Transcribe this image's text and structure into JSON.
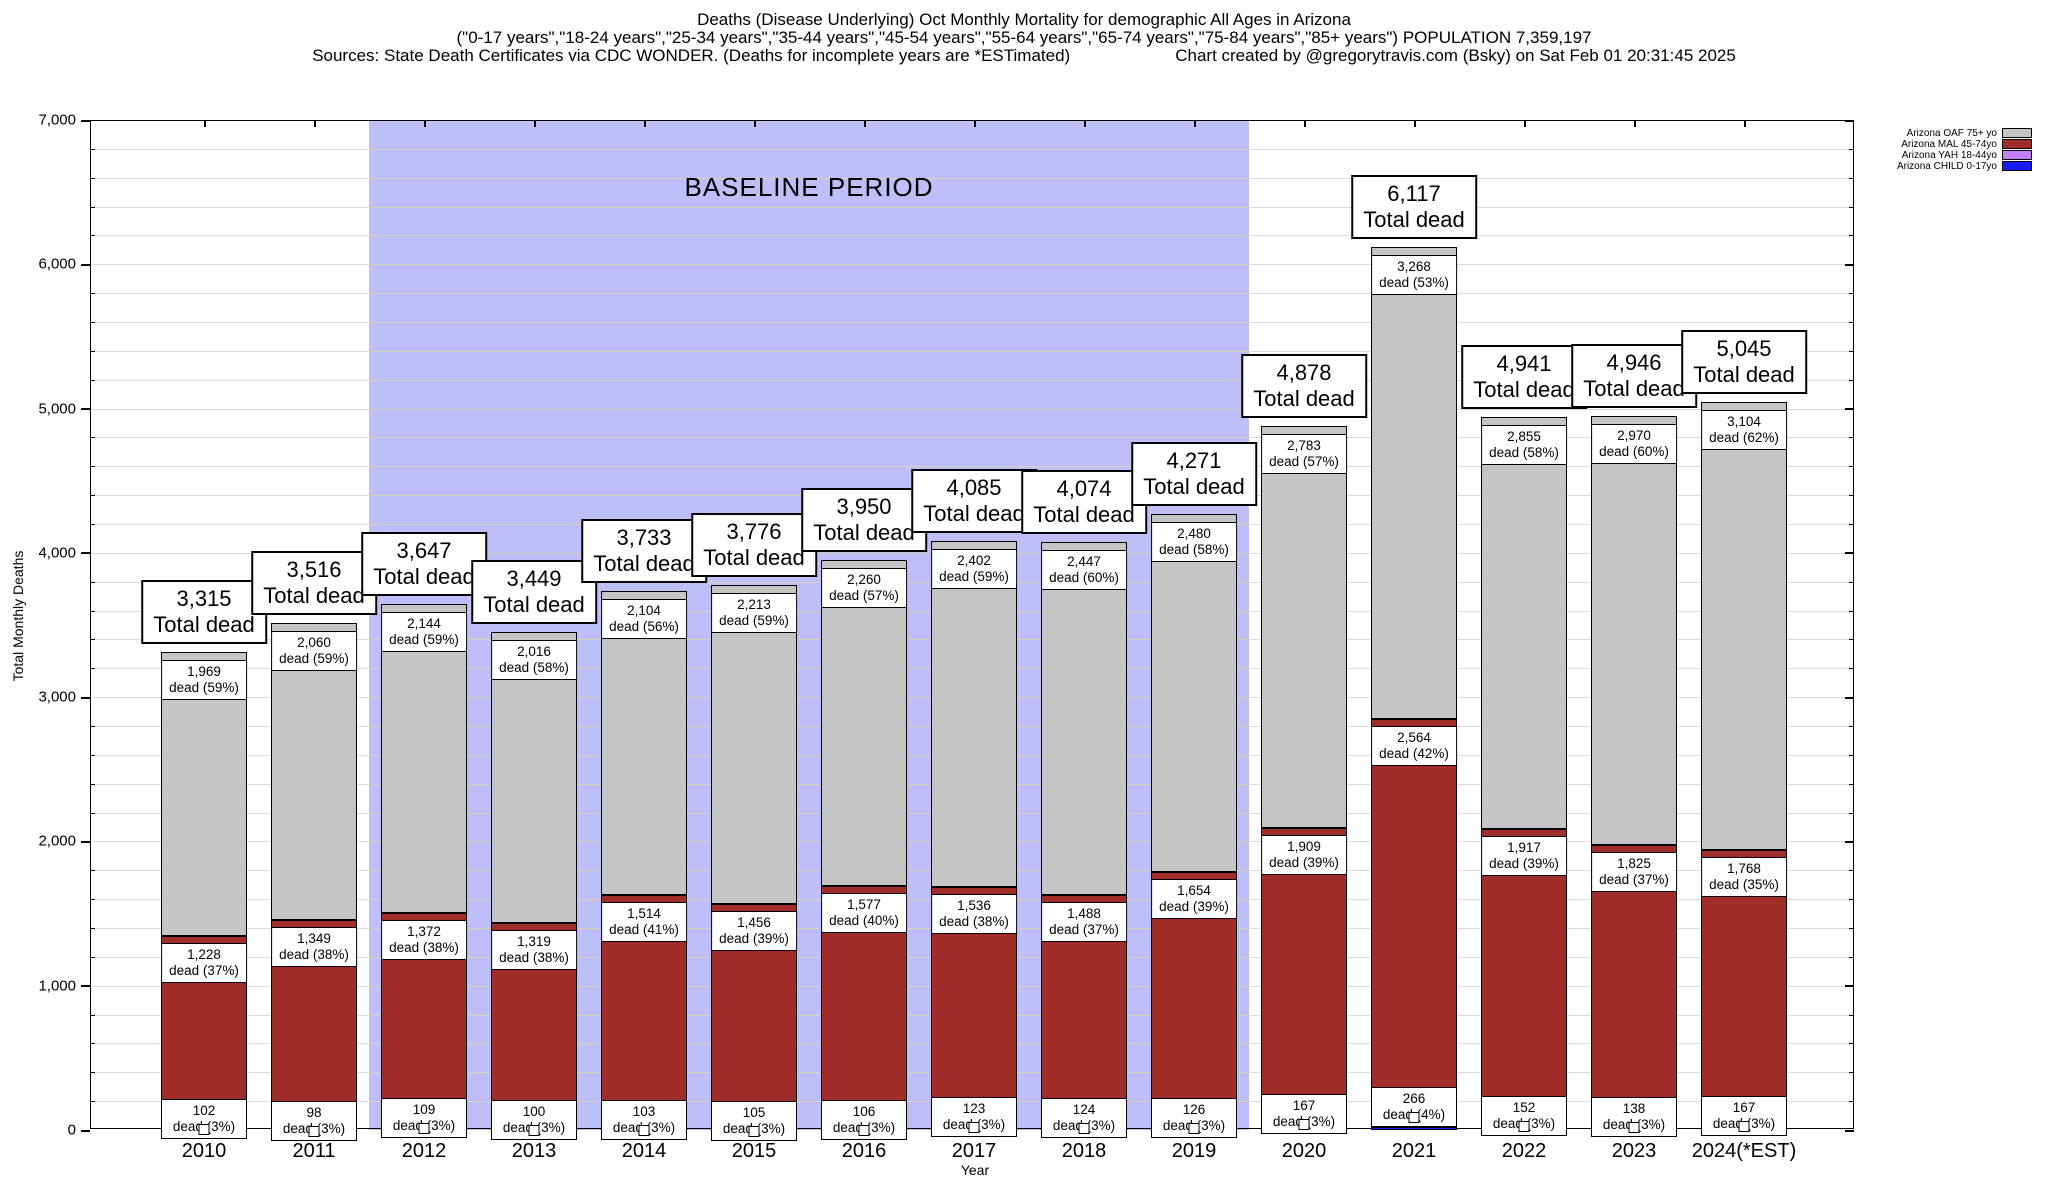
{
  "header": {
    "line1": "Deaths (Disease Underlying) Oct Monthly Mortality for demographic All Ages in Arizona",
    "line2": "(\"0-17 years\",\"18-24 years\",\"25-34 years\",\"35-44 years\",\"45-54 years\",\"55-64 years\",\"65-74 years\",\"75-84 years\",\"85+ years\") POPULATION 7,359,197",
    "sources": "Sources: State Death Certificates via CDC WONDER. (Deaths for incomplete years are *ESTimated)",
    "credit": "Chart created by @gregorytravis.com (Bsky) on Sat Feb 01 20:31:45 2025"
  },
  "axes": {
    "y_title": "Total Monthly Deaths",
    "x_title": "Year",
    "y_ticks": [
      "0",
      "1,000",
      "2,000",
      "3,000",
      "4,000",
      "5,000",
      "6,000",
      "7,000"
    ],
    "ylim": [
      0,
      7000
    ],
    "minor_step": 200
  },
  "legend": [
    {
      "label": "Arizona OAF 75+ yo",
      "color": "#c5c5c5"
    },
    {
      "label": "Arizona MAL 45-74yo",
      "color": "#a02d28"
    },
    {
      "label": "Arizona YAH 18-44yo",
      "color": "#c580f5"
    },
    {
      "label": "Arizona CHILD 0-17yo",
      "color": "#1a1aff"
    }
  ],
  "baseline": {
    "label": "BASELINE PERIOD",
    "start_year": "2012",
    "end_year": "2019",
    "fill": "#bebef8"
  },
  "chart_data": {
    "type": "bar",
    "stacked": true,
    "title": "Deaths (Disease Underlying) Oct Monthly Mortality for demographic All Ages in Arizona",
    "xlabel": "Year",
    "ylabel": "Total Monthly Deaths",
    "ylim": [
      0,
      7000
    ],
    "grid": "horizontal, every 200, on",
    "legend_position": "top-right outside",
    "categories": [
      "2010",
      "2011",
      "2012",
      "2013",
      "2014",
      "2015",
      "2016",
      "2017",
      "2018",
      "2019",
      "2020",
      "2021",
      "2022",
      "2023",
      "2024(*EST)"
    ],
    "totals": [
      3315,
      3516,
      3647,
      3449,
      3733,
      3776,
      3950,
      4085,
      4074,
      4271,
      4878,
      6117,
      4941,
      4946,
      5045
    ],
    "total_suffix": "Total dead",
    "dead_word": "dead",
    "series": [
      {
        "key": "child",
        "name": "Arizona CHILD 0-17yo",
        "color": "#1a1aff",
        "labeled": false,
        "values": [
          16,
          9,
          22,
          14,
          12,
          2,
          7,
          24,
          15,
          11,
          19,
          19,
          17,
          13,
          6
        ]
      },
      {
        "key": "yah",
        "name": "Arizona YAH 18-44yo",
        "color": "#c580f5",
        "labeled": true,
        "values": [
          102,
          98,
          109,
          100,
          103,
          105,
          106,
          123,
          124,
          126,
          167,
          266,
          152,
          138,
          167
        ],
        "pcts": [
          3,
          3,
          3,
          3,
          3,
          3,
          3,
          3,
          3,
          3,
          3,
          4,
          3,
          3,
          3
        ]
      },
      {
        "key": "mal",
        "name": "Arizona MAL 45-74yo",
        "color": "#a02d28",
        "labeled": true,
        "values": [
          1228,
          1349,
          1372,
          1319,
          1514,
          1456,
          1577,
          1536,
          1488,
          1654,
          1909,
          2564,
          1917,
          1825,
          1768
        ],
        "pcts": [
          37,
          38,
          38,
          38,
          41,
          39,
          40,
          38,
          37,
          39,
          39,
          42,
          39,
          37,
          35
        ]
      },
      {
        "key": "oaf",
        "name": "Arizona OAF 75+ yo",
        "color": "#c5c5c5",
        "labeled": true,
        "values": [
          1969,
          2060,
          2144,
          2016,
          2104,
          2213,
          2260,
          2402,
          2447,
          2480,
          2783,
          3268,
          2855,
          2970,
          3104
        ],
        "pcts": [
          59,
          59,
          59,
          58,
          56,
          59,
          57,
          59,
          60,
          58,
          57,
          53,
          58,
          60,
          62
        ]
      }
    ]
  }
}
